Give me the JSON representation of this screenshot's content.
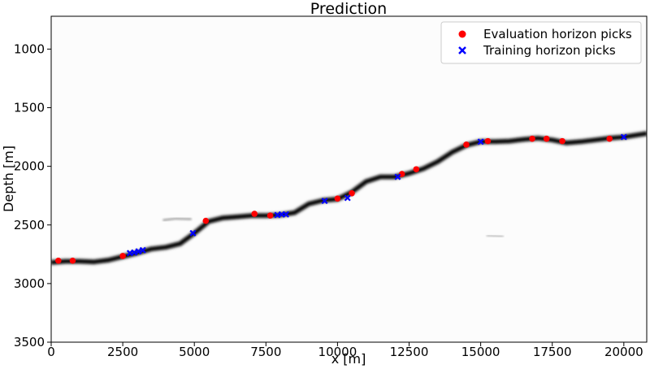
{
  "chart_data": {
    "type": "scatter",
    "title": "Prediction",
    "xlabel": "x [m]",
    "ylabel": "Depth [m]",
    "xlim": [
      0,
      20800
    ],
    "ylim": [
      3500,
      720
    ],
    "y_inverted": true,
    "xticks": [
      0,
      2500,
      5000,
      7500,
      10000,
      12500,
      15000,
      17500,
      20000
    ],
    "yticks": [
      1000,
      1500,
      2000,
      2500,
      3000,
      3500
    ],
    "grid": false,
    "legend_position": "top-right",
    "background": "grayscale prediction image with dark horizon band",
    "horizon_band": {
      "x": [
        0,
        500,
        1000,
        1500,
        2000,
        2500,
        3000,
        3500,
        4000,
        4500,
        5000,
        5500,
        6000,
        6500,
        7000,
        7500,
        8000,
        8500,
        9000,
        9500,
        10000,
        10500,
        11000,
        11500,
        12000,
        12500,
        13000,
        13500,
        14000,
        14500,
        15000,
        15500,
        16000,
        16500,
        17000,
        17500,
        18000,
        18500,
        19000,
        19500,
        20000,
        20800
      ],
      "y": [
        2820,
        2810,
        2810,
        2815,
        2800,
        2770,
        2740,
        2705,
        2690,
        2660,
        2570,
        2470,
        2440,
        2430,
        2420,
        2420,
        2415,
        2395,
        2320,
        2290,
        2280,
        2220,
        2130,
        2090,
        2090,
        2060,
        2020,
        1960,
        1880,
        1820,
        1790,
        1790,
        1785,
        1770,
        1760,
        1775,
        1800,
        1790,
        1775,
        1760,
        1750,
        1720
      ]
    },
    "series": [
      {
        "name": "Evaluation horizon picks",
        "color": "#ff0000",
        "marker": "circle",
        "points": [
          [
            250,
            2805
          ],
          [
            750,
            2805
          ],
          [
            2500,
            2765
          ],
          [
            5400,
            2465
          ],
          [
            7100,
            2405
          ],
          [
            7650,
            2420
          ],
          [
            10000,
            2275
          ],
          [
            10500,
            2230
          ],
          [
            12250,
            2065
          ],
          [
            12750,
            2025
          ],
          [
            14500,
            1815
          ],
          [
            15250,
            1785
          ],
          [
            16800,
            1765
          ],
          [
            17300,
            1765
          ],
          [
            17850,
            1785
          ],
          [
            19500,
            1765
          ]
        ]
      },
      {
        "name": "Training horizon picks",
        "color": "#0000ff",
        "marker": "x",
        "points": [
          [
            2750,
            2740
          ],
          [
            2900,
            2735
          ],
          [
            3050,
            2725
          ],
          [
            3200,
            2715
          ],
          [
            4950,
            2570
          ],
          [
            7900,
            2415
          ],
          [
            8050,
            2410
          ],
          [
            8200,
            2410
          ],
          [
            9550,
            2295
          ],
          [
            10350,
            2270
          ],
          [
            12100,
            2090
          ],
          [
            15000,
            1790
          ],
          [
            20000,
            1750
          ]
        ]
      }
    ],
    "colors": {
      "evaluation": "#ff0000",
      "training": "#0000ff",
      "band": "#000000"
    }
  }
}
